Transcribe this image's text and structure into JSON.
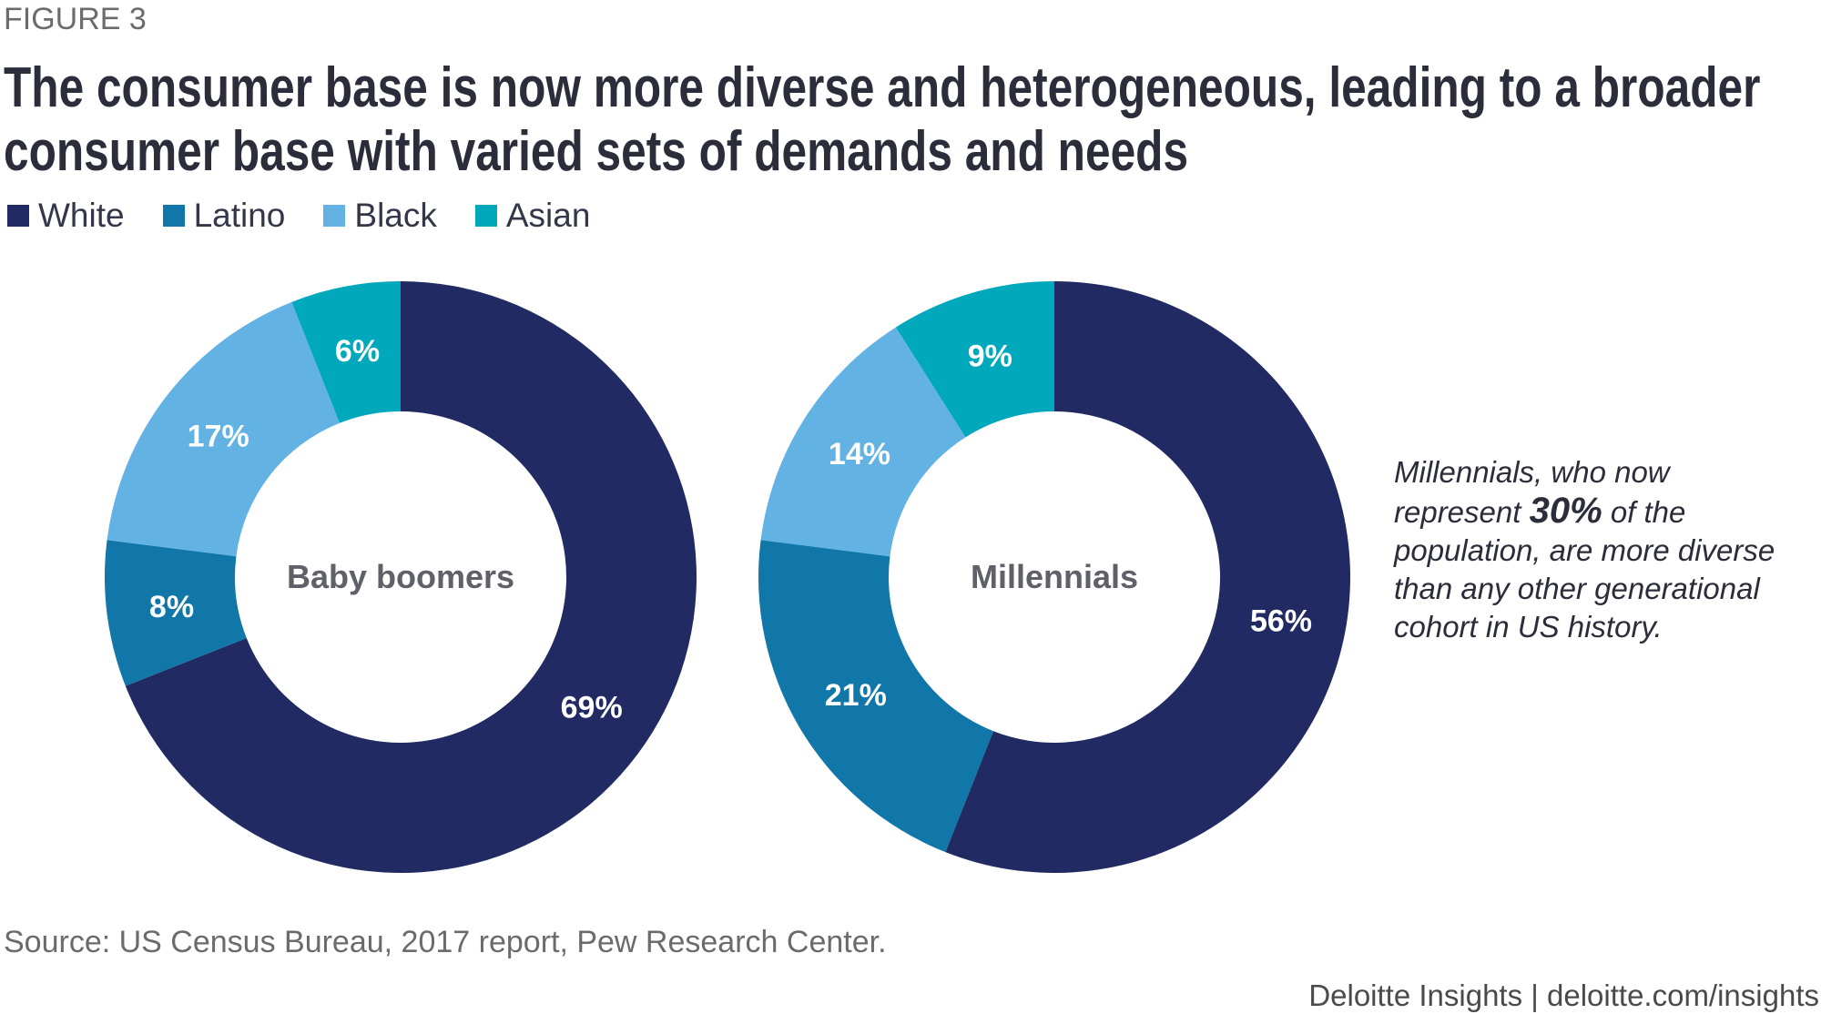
{
  "figure_label": "FIGURE 3",
  "title_line1": "The consumer base is now more diverse and heterogeneous, leading to a broader",
  "title_line2": "consumer base with varied sets of demands and needs",
  "note": {
    "pre": "Millennials, who now represent ",
    "highlight": "30%",
    "post": " of the population, are more diverse than any other generational cohort in US history."
  },
  "source": "Source: US Census Bureau, 2017 report, Pew Research Center.",
  "footer": "Deloitte Insights | deloitte.com/insights",
  "chart_data": {
    "type": "pie",
    "variant": "donut",
    "legend": [
      {
        "name": "White",
        "color": "#212a62"
      },
      {
        "name": "Latino",
        "color": "#1176a8"
      },
      {
        "name": "Black",
        "color": "#62b3e4"
      },
      {
        "name": "Asian",
        "color": "#00a8bb"
      }
    ],
    "legend_placement": "top-left",
    "charts": [
      {
        "label": "Baby boomers",
        "values": [
          69,
          8,
          17,
          6
        ],
        "labels": [
          "69%",
          "8%",
          "17%",
          "6%"
        ]
      },
      {
        "label": "Millennials",
        "values": [
          56,
          21,
          14,
          9
        ],
        "labels": [
          "56%",
          "21%",
          "14%",
          "9%"
        ]
      }
    ]
  }
}
